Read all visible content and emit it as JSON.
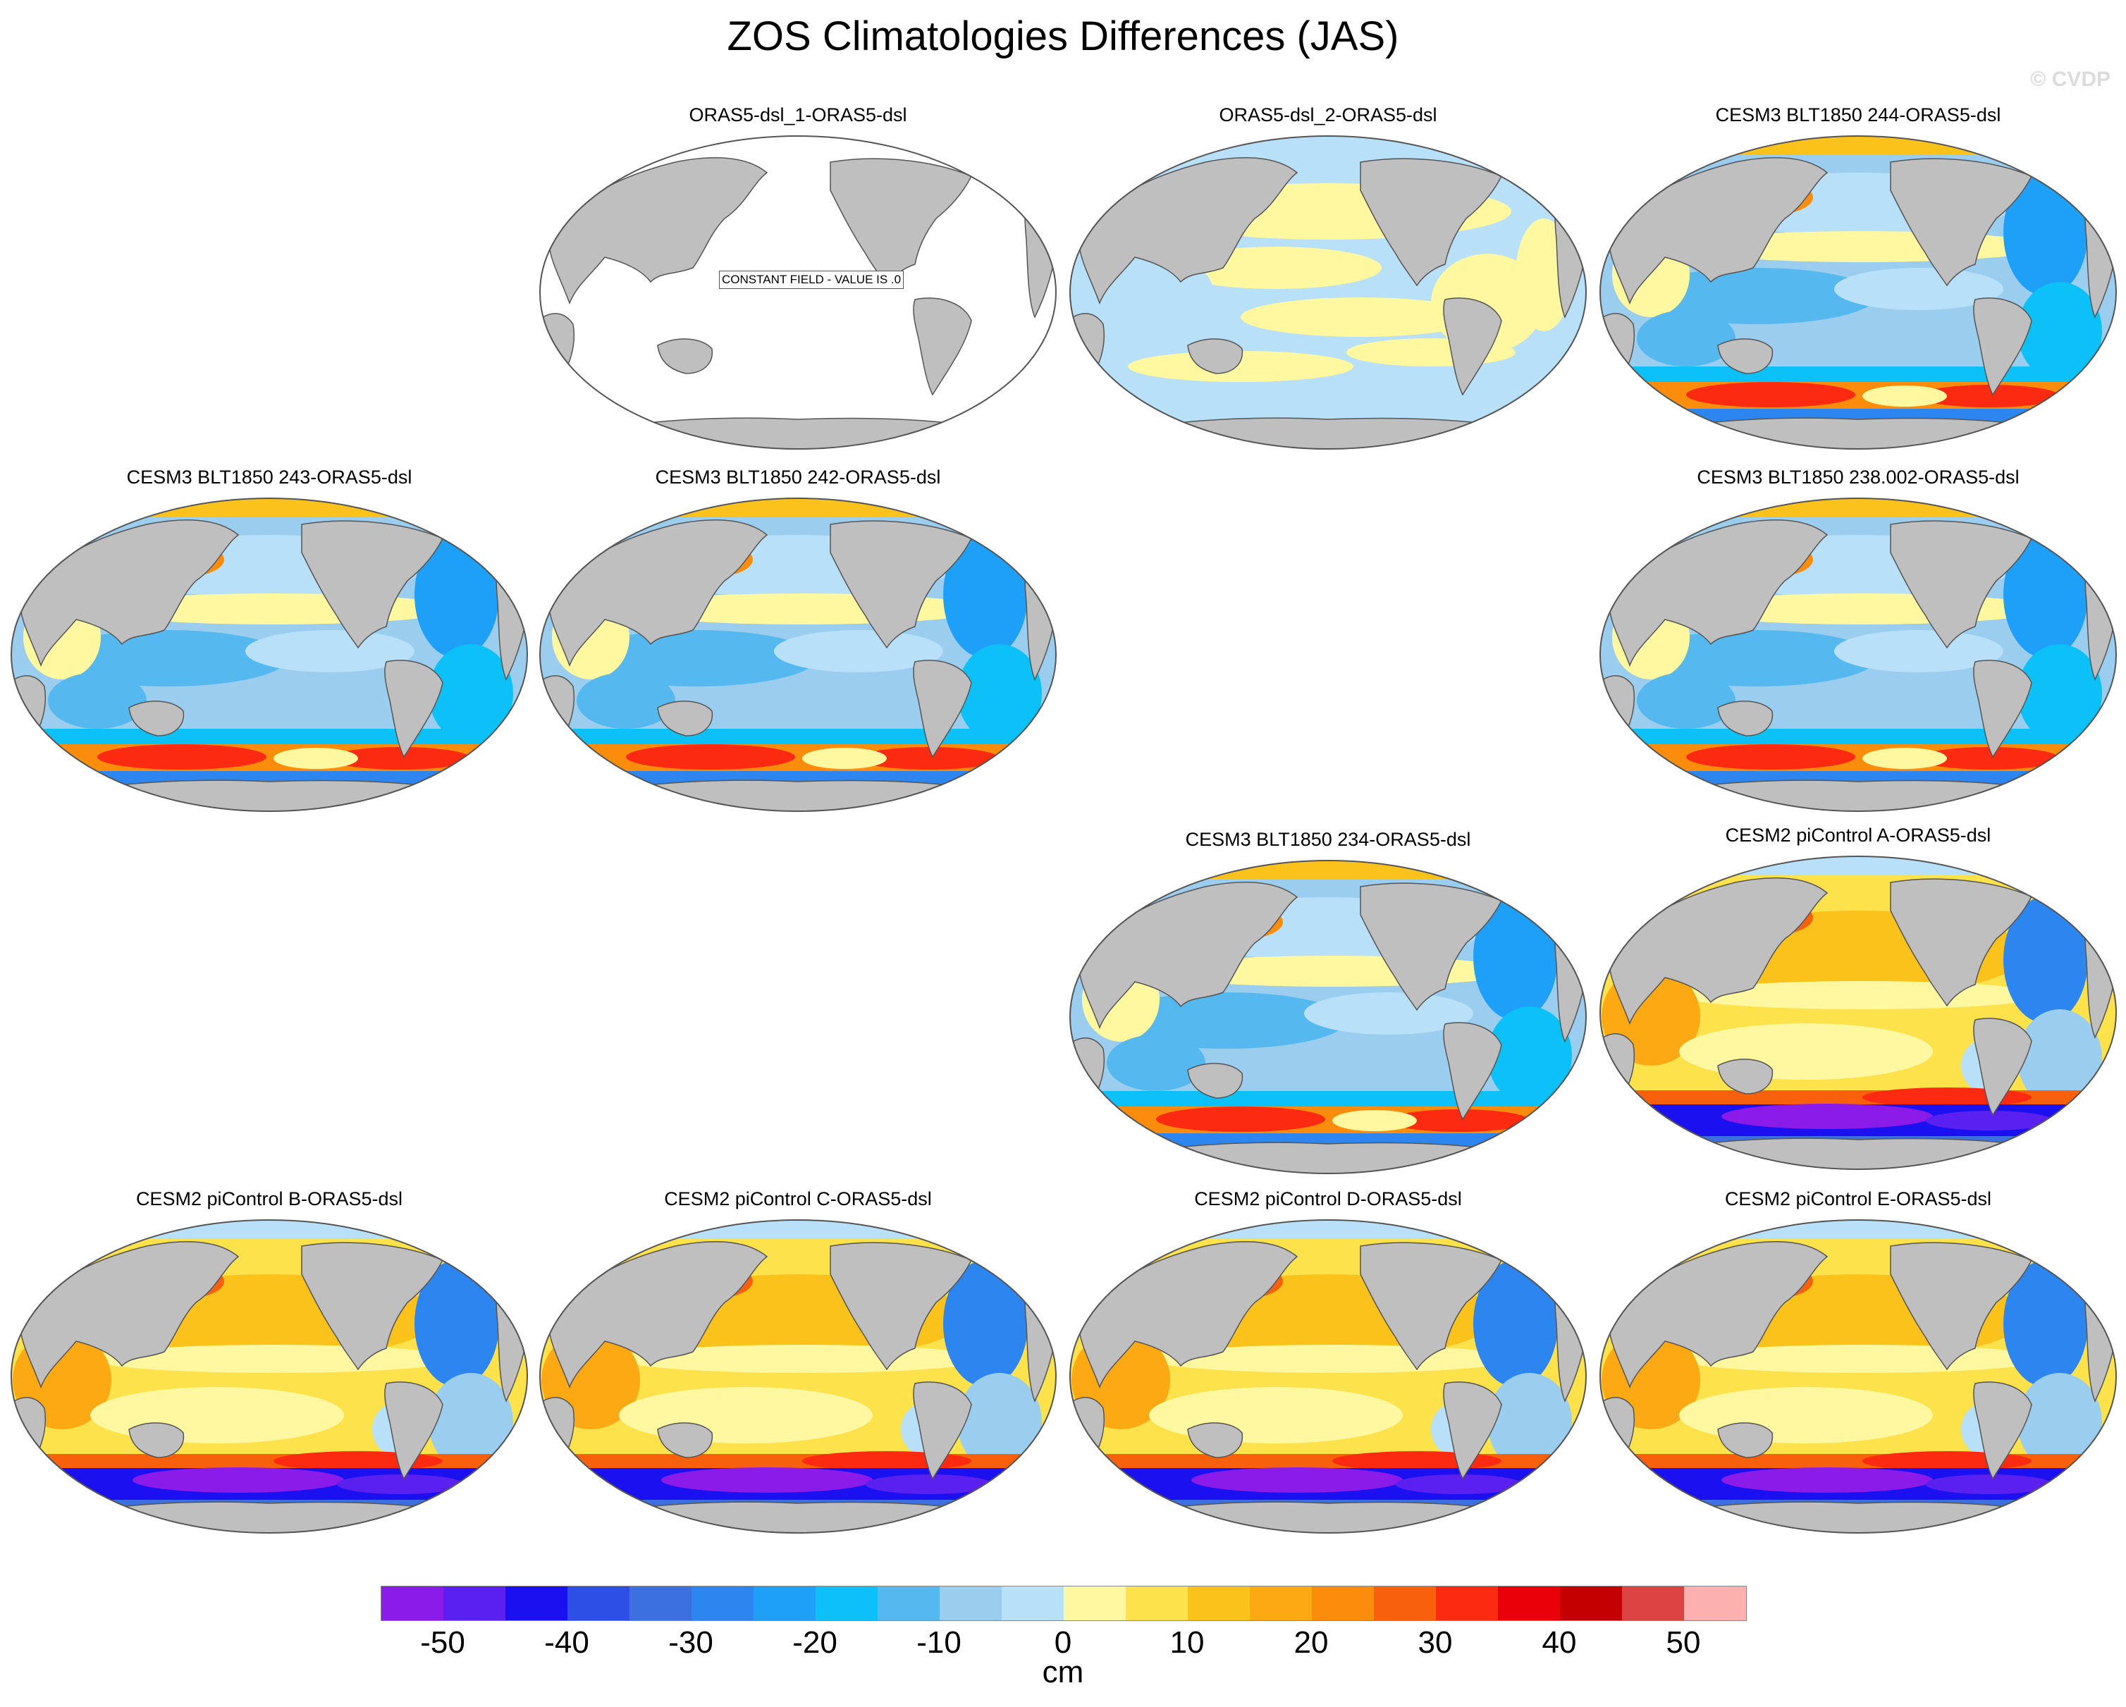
{
  "title": "ZOS Climatologies Differences (JAS)",
  "watermark": "© CVDP",
  "colors": {
    "ocean_land": "#bfbfbf",
    "coast": "#555555"
  },
  "panels": [
    {
      "title": "ORAS5-dsl_1-ORAS5-dsl",
      "pattern": "constant",
      "note": "CONSTANT FIELD - VALUE IS .0"
    },
    {
      "title": "ORAS5-dsl_2-ORAS5-dsl",
      "pattern": "near-zero"
    },
    {
      "title": "CESM3 BLT1850 244-ORAS5-dsl",
      "pattern": "cesm3"
    },
    {
      "title": "CESM3 BLT1850 243-ORAS5-dsl",
      "pattern": "cesm3"
    },
    {
      "title": "CESM3 BLT1850 242-ORAS5-dsl",
      "pattern": "cesm3"
    },
    {
      "title": "CESM3 BLT1850 238.002-ORAS5-dsl",
      "pattern": "cesm3"
    },
    {
      "title": "CESM3 BLT1850 234-ORAS5-dsl",
      "pattern": "cesm3"
    },
    {
      "title": "CESM2 piControl A-ORAS5-dsl",
      "pattern": "cesm2"
    },
    {
      "title": "CESM2 piControl B-ORAS5-dsl",
      "pattern": "cesm2"
    },
    {
      "title": "CESM2 piControl C-ORAS5-dsl",
      "pattern": "cesm2"
    },
    {
      "title": "CESM2 piControl D-ORAS5-dsl",
      "pattern": "cesm2"
    },
    {
      "title": "CESM2 piControl E-ORAS5-dsl",
      "pattern": "cesm2"
    }
  ],
  "colorbar": {
    "colors": [
      "#8a1be8",
      "#5a20f0",
      "#1a10f0",
      "#2d4fe6",
      "#3c70e0",
      "#2d86f0",
      "#1fa0f8",
      "#0cc0f8",
      "#55b8ee",
      "#9acdee",
      "#b8e0f8",
      "#fff8a0",
      "#fde24c",
      "#fcc21c",
      "#fca914",
      "#fc8c0c",
      "#f8600c",
      "#fc2a10",
      "#ea0008",
      "#c40000",
      "#dc4444",
      "#fcb0b0"
    ],
    "ticks": [
      "-50",
      "-40",
      "-30",
      "-20",
      "-10",
      "0",
      "10",
      "20",
      "30",
      "40",
      "50"
    ],
    "unit": "cm"
  }
}
